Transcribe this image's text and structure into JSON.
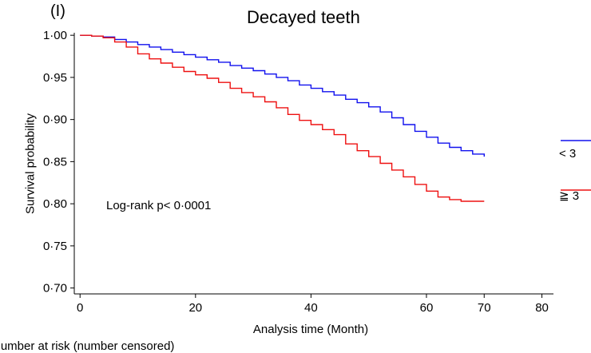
{
  "panel_label": "(I)",
  "annotation": "Log-rank p< 0·0001",
  "clipped_caption": "Number at risk    (number censored)",
  "colors": {
    "group1": "#1010ee",
    "group2": "#ee1010"
  },
  "chart_data": {
    "type": "line",
    "step": true,
    "title": "Decayed teeth",
    "xlabel": "Analysis time (Month)",
    "ylabel": "Survival probability",
    "xlim": [
      -1,
      82
    ],
    "ylim": [
      0.693,
      1.003
    ],
    "xticks": [
      0,
      20,
      40,
      60,
      70,
      80
    ],
    "xtick_labels": [
      "0",
      "20",
      "40",
      "60",
      "70",
      "80"
    ],
    "yticks": [
      1.0,
      0.95,
      0.9,
      0.85,
      0.8,
      0.75,
      0.7
    ],
    "ytick_labels": [
      "1·00",
      "0·95",
      "0·90",
      "0·85",
      "0·80",
      "0·75",
      "0·70"
    ],
    "grid": false,
    "legend_position": "right",
    "series": [
      {
        "name": "< 3",
        "color": "#1010ee",
        "x": [
          0,
          2,
          4,
          6,
          8,
          10,
          12,
          14,
          16,
          18,
          20,
          22,
          24,
          26,
          28,
          30,
          32,
          34,
          36,
          38,
          40,
          42,
          44,
          46,
          48,
          50,
          52,
          54,
          56,
          58,
          60,
          62,
          64,
          66,
          68,
          70
        ],
        "y": [
          1.0,
          0.999,
          0.998,
          0.995,
          0.992,
          0.989,
          0.986,
          0.983,
          0.98,
          0.977,
          0.974,
          0.971,
          0.968,
          0.964,
          0.961,
          0.958,
          0.954,
          0.95,
          0.946,
          0.941,
          0.937,
          0.933,
          0.929,
          0.924,
          0.92,
          0.915,
          0.909,
          0.902,
          0.894,
          0.886,
          0.879,
          0.872,
          0.867,
          0.863,
          0.859,
          0.856
        ]
      },
      {
        "name": "≧ 3",
        "color": "#ee1010",
        "x": [
          0,
          2,
          4,
          6,
          8,
          10,
          12,
          14,
          16,
          18,
          20,
          22,
          24,
          26,
          28,
          30,
          32,
          34,
          36,
          38,
          40,
          42,
          44,
          46,
          48,
          50,
          52,
          54,
          56,
          58,
          60,
          62,
          64,
          66,
          68,
          70
        ],
        "y": [
          1.0,
          0.999,
          0.997,
          0.992,
          0.986,
          0.978,
          0.972,
          0.967,
          0.962,
          0.957,
          0.953,
          0.949,
          0.944,
          0.937,
          0.932,
          0.927,
          0.921,
          0.914,
          0.906,
          0.899,
          0.894,
          0.888,
          0.882,
          0.871,
          0.863,
          0.856,
          0.848,
          0.84,
          0.832,
          0.823,
          0.815,
          0.808,
          0.805,
          0.803,
          0.803,
          0.803
        ]
      }
    ]
  }
}
